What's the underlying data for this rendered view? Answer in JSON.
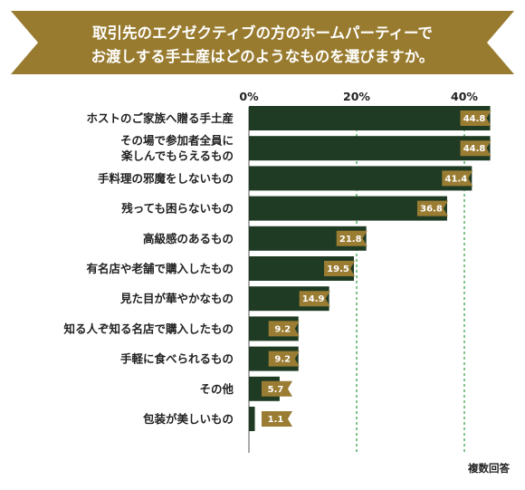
{
  "title_lines": [
    "取引先のエグゼクティブの方のホームパーティーで",
    "お渡しする手土産はどのようなものを選びますか。"
  ],
  "note": "複数回答",
  "colors": {
    "banner": "#987b2f",
    "bar": "#1f3b24",
    "label_bg": "#9a7c33",
    "grid": "#2e9a3e"
  },
  "chart_data": {
    "type": "bar",
    "orientation": "horizontal",
    "title": "取引先のエグゼクティブの方のホームパーティーでお渡しする手土産はどのようなものを選びますか。",
    "xlim": [
      0,
      45
    ],
    "ticks": [
      0,
      20,
      40
    ],
    "tick_labels": [
      "0%",
      "20%",
      "40%"
    ],
    "grid": "dashed at 20% and 40%",
    "categories": [
      [
        "ホストのご家族へ贈る手土産"
      ],
      [
        "その場で参加者全員に",
        "楽しんでもらえるもの"
      ],
      [
        "手料理の邪魔をしないもの"
      ],
      [
        "残っても困らないもの"
      ],
      [
        "高級感のあるもの"
      ],
      [
        "有名店や老舗で購入したもの"
      ],
      [
        "見た目が華やかなもの"
      ],
      [
        "知る人ぞ知る名店で購入したもの"
      ],
      [
        "手軽に食べられるもの"
      ],
      [
        "その他"
      ],
      [
        "包装が美しいもの"
      ]
    ],
    "values": [
      44.8,
      44.8,
      41.4,
      36.8,
      21.8,
      19.5,
      14.9,
      9.2,
      9.2,
      5.7,
      1.1
    ]
  }
}
